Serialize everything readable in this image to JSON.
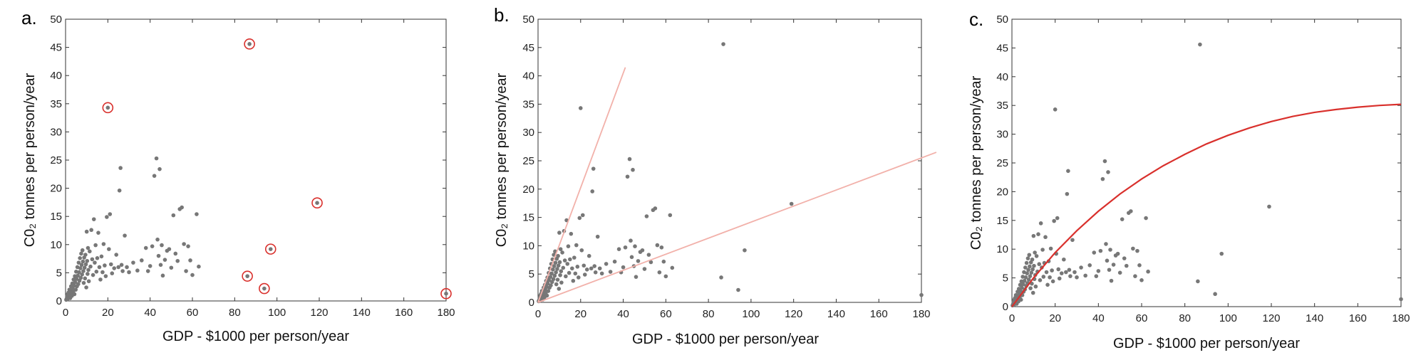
{
  "figure": {
    "xlabel": "GDP - $1000 per person/year",
    "ylabel": "C0₂ tonnes per person/year",
    "colors": {
      "points": "#777777",
      "circle": "#d9302c",
      "fit_light": "#f2b1aa",
      "fit_strong": "#d9302c"
    }
  },
  "chart_data": [
    {
      "panel": "a.",
      "type": "scatter",
      "xlim": [
        0,
        180
      ],
      "ylim": [
        0,
        50
      ],
      "xticks": [
        "0",
        "20",
        "40",
        "60",
        "80",
        "100",
        "120",
        "140",
        "160",
        "180"
      ],
      "yticks": [
        "0",
        "5",
        "10",
        "15",
        "20",
        "25",
        "30",
        "35",
        "40",
        "45",
        "50"
      ],
      "grid": false,
      "highlighted_points": [
        [
          20,
          34.3
        ],
        [
          87,
          45.6
        ],
        [
          119,
          17.4
        ],
        [
          97,
          9.2
        ],
        [
          86,
          4.4
        ],
        [
          94,
          2.2
        ],
        [
          180,
          1.3
        ]
      ]
    },
    {
      "panel": "b.",
      "type": "scatter",
      "xlim": [
        0,
        180
      ],
      "ylim": [
        0,
        50
      ],
      "xticks": [
        "0",
        "20",
        "40",
        "60",
        "80",
        "100",
        "120",
        "140",
        "160",
        "180"
      ],
      "yticks": [
        "0",
        "5",
        "10",
        "15",
        "20",
        "25",
        "30",
        "35",
        "40",
        "45",
        "50"
      ],
      "grid": false,
      "lines": [
        {
          "x": [
            0,
            41
          ],
          "y": [
            0,
            41.5
          ]
        },
        {
          "x": [
            0,
            187
          ],
          "y": [
            0,
            26.5
          ]
        }
      ]
    },
    {
      "panel": "c.",
      "type": "scatter",
      "xlim": [
        0,
        180
      ],
      "ylim": [
        0,
        50
      ],
      "xticks": [
        "0",
        "20",
        "40",
        "60",
        "80",
        "100",
        "120",
        "140",
        "160",
        "180"
      ],
      "yticks": [
        "0",
        "5",
        "10",
        "15",
        "20",
        "25",
        "30",
        "35",
        "40",
        "45",
        "50"
      ],
      "grid": false,
      "curve": {
        "x": [
          0,
          10,
          20,
          30,
          40,
          50,
          60,
          70,
          80,
          90,
          100,
          110,
          120,
          130,
          140,
          150,
          160,
          170,
          180
        ],
        "y": [
          0,
          5.0,
          9.4,
          13.2,
          16.6,
          19.6,
          22.2,
          24.5,
          26.5,
          28.3,
          29.8,
          31.1,
          32.2,
          33.1,
          33.8,
          34.3,
          34.7,
          35.0,
          35.2
        ]
      }
    }
  ],
  "scatter_points": [
    [
      0.3,
      0.2
    ],
    [
      0.5,
      0.4
    ],
    [
      0.7,
      0.8
    ],
    [
      0.9,
      0.3
    ],
    [
      1.0,
      1.2
    ],
    [
      1.2,
      0.6
    ],
    [
      1.4,
      1.5
    ],
    [
      1.6,
      0.9
    ],
    [
      1.8,
      2.0
    ],
    [
      2.0,
      1.1
    ],
    [
      2.2,
      0.5
    ],
    [
      2.4,
      1.8
    ],
    [
      2.6,
      2.6
    ],
    [
      2.8,
      1.4
    ],
    [
      3.0,
      0.9
    ],
    [
      3.2,
      3.1
    ],
    [
      3.4,
      2.2
    ],
    [
      3.6,
      1.6
    ],
    [
      3.8,
      3.8
    ],
    [
      4.0,
      2.7
    ],
    [
      4.2,
      1.2
    ],
    [
      4.4,
      4.4
    ],
    [
      4.6,
      3.3
    ],
    [
      4.8,
      2.0
    ],
    [
      5.0,
      5.2
    ],
    [
      5.2,
      3.9
    ],
    [
      5.4,
      2.6
    ],
    [
      5.6,
      6.0
    ],
    [
      5.8,
      4.5
    ],
    [
      6.0,
      3.0
    ],
    [
      6.2,
      6.8
    ],
    [
      6.4,
      5.1
    ],
    [
      6.6,
      3.6
    ],
    [
      6.8,
      7.6
    ],
    [
      7.0,
      5.8
    ],
    [
      7.2,
      4.1
    ],
    [
      7.4,
      8.4
    ],
    [
      7.6,
      6.4
    ],
    [
      7.8,
      4.7
    ],
    [
      8.0,
      9.0
    ],
    [
      8.2,
      7.0
    ],
    [
      8.4,
      5.3
    ],
    [
      8.6,
      3.2
    ],
    [
      8.8,
      7.7
    ],
    [
      9.0,
      5.9
    ],
    [
      9.2,
      4.0
    ],
    [
      9.4,
      8.2
    ],
    [
      9.6,
      6.5
    ],
    [
      9.8,
      2.4
    ],
    [
      10.0,
      12.3
    ],
    [
      10.2,
      7.1
    ],
    [
      10.4,
      4.8
    ],
    [
      10.6,
      9.4
    ],
    [
      10.8,
      5.5
    ],
    [
      11.0,
      3.5
    ],
    [
      11.4,
      8.8
    ],
    [
      11.8,
      6.1
    ],
    [
      12.2,
      12.6
    ],
    [
      12.6,
      7.4
    ],
    [
      13.0,
      4.6
    ],
    [
      13.4,
      14.5
    ],
    [
      13.8,
      6.8
    ],
    [
      14.2,
      9.9
    ],
    [
      14.6,
      5.2
    ],
    [
      15.0,
      7.6
    ],
    [
      15.5,
      12.1
    ],
    [
      16.0,
      6.0
    ],
    [
      16.5,
      3.8
    ],
    [
      17.0,
      7.9
    ],
    [
      17.5,
      5.1
    ],
    [
      18.0,
      10.1
    ],
    [
      18.5,
      6.3
    ],
    [
      19.0,
      4.4
    ],
    [
      19.5,
      14.9
    ],
    [
      20.0,
      34.3
    ],
    [
      20.5,
      9.2
    ],
    [
      21.0,
      15.4
    ],
    [
      21.5,
      6.5
    ],
    [
      22.0,
      4.9
    ],
    [
      23.0,
      5.8
    ],
    [
      24.0,
      8.2
    ],
    [
      25.0,
      6.0
    ],
    [
      25.5,
      19.6
    ],
    [
      26.0,
      23.6
    ],
    [
      26.5,
      6.4
    ],
    [
      27.0,
      5.3
    ],
    [
      28.0,
      11.6
    ],
    [
      29.0,
      6.0
    ],
    [
      30.0,
      5.1
    ],
    [
      32.0,
      6.8
    ],
    [
      34.0,
      5.4
    ],
    [
      36.0,
      7.2
    ],
    [
      38.0,
      9.4
    ],
    [
      39.0,
      5.3
    ],
    [
      40.0,
      6.2
    ],
    [
      41.0,
      9.7
    ],
    [
      42.0,
      22.2
    ],
    [
      43.0,
      25.3
    ],
    [
      43.5,
      10.9
    ],
    [
      44.0,
      8.0
    ],
    [
      44.5,
      23.4
    ],
    [
      45.0,
      6.4
    ],
    [
      45.5,
      9.9
    ],
    [
      46.0,
      4.5
    ],
    [
      47.0,
      7.3
    ],
    [
      48.0,
      8.9
    ],
    [
      49.0,
      9.2
    ],
    [
      50.0,
      5.9
    ],
    [
      51.0,
      15.2
    ],
    [
      52.0,
      8.4
    ],
    [
      53.0,
      7.1
    ],
    [
      54.0,
      16.3
    ],
    [
      55.0,
      16.6
    ],
    [
      56.0,
      10.1
    ],
    [
      57.0,
      5.3
    ],
    [
      58.0,
      9.7
    ],
    [
      59.0,
      7.2
    ],
    [
      60.0,
      4.6
    ],
    [
      62.0,
      15.4
    ],
    [
      63.0,
      6.1
    ],
    [
      86.0,
      4.4
    ],
    [
      87.0,
      45.6
    ],
    [
      94.0,
      2.2
    ],
    [
      97.0,
      9.2
    ],
    [
      119.0,
      17.4
    ],
    [
      180.0,
      1.3
    ]
  ]
}
